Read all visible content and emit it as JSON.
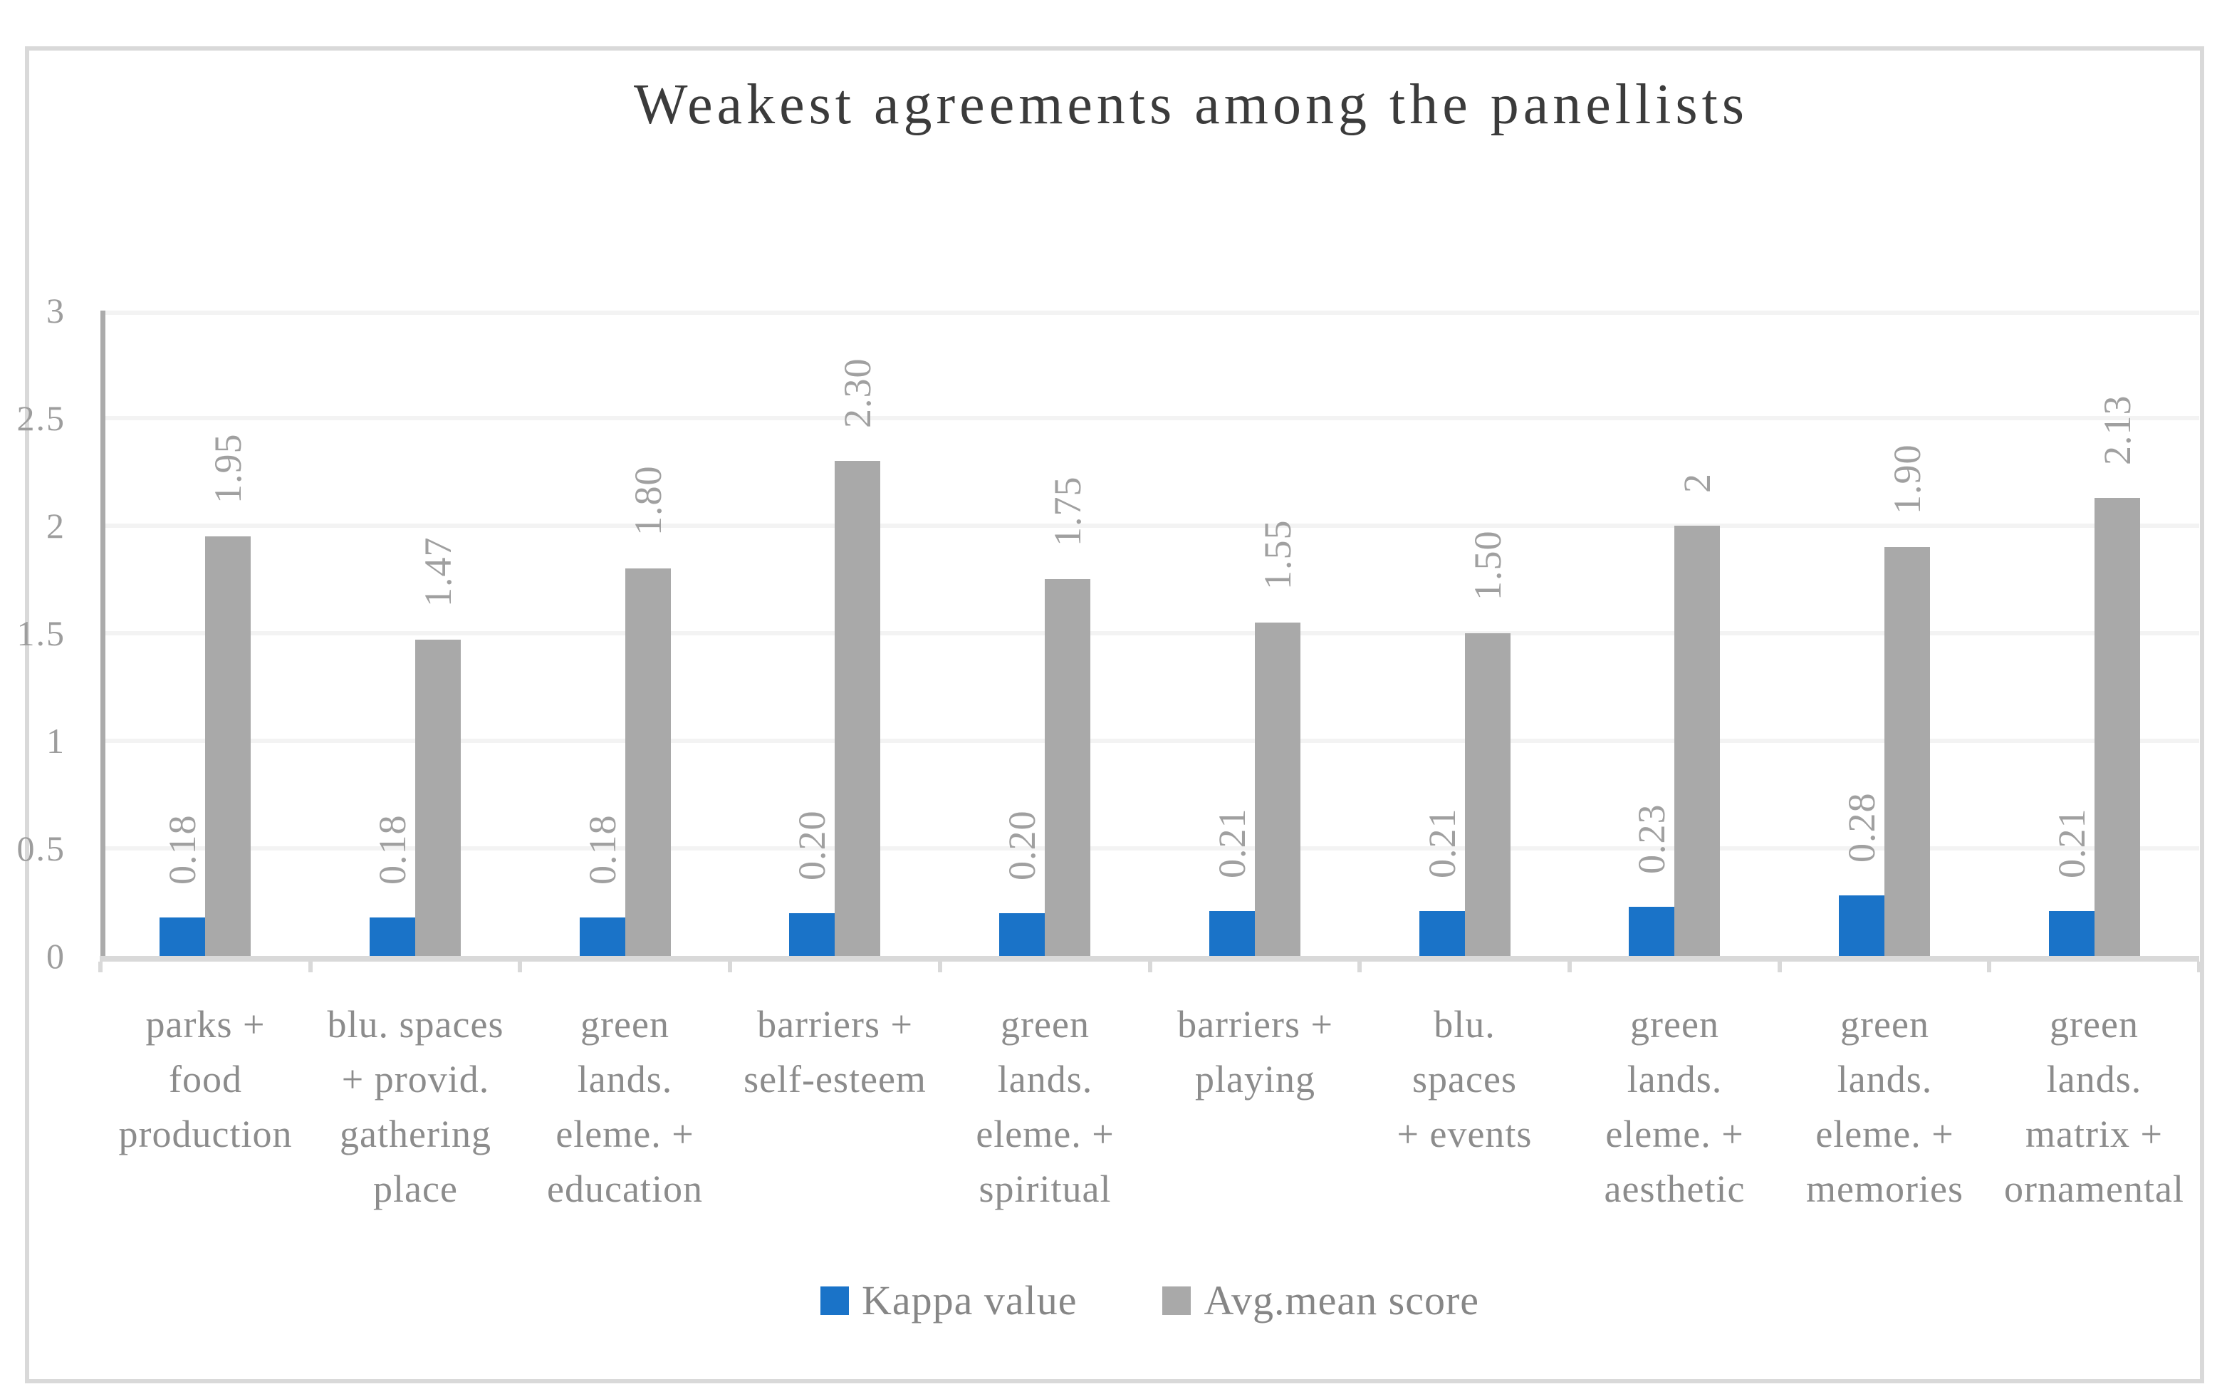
{
  "chart_data": {
    "type": "bar",
    "title": "Weakest agreements among the panellists",
    "categories": [
      "parks + food production",
      "blu. spaces + provid. gathering place",
      "green lands. eleme. + education",
      "barriers + self-esteem",
      "green lands. eleme. + spiritual",
      "barriers + playing",
      "blu. spaces + events",
      "green lands. eleme. + aesthetic",
      "green lands. eleme. + memories",
      "green lands. matrix + ornamental"
    ],
    "category_lines": [
      [
        "parks +",
        "food",
        "production"
      ],
      [
        "blu. spaces",
        "+ provid.",
        "gathering",
        "place"
      ],
      [
        "green",
        "lands.",
        "eleme. +",
        "education"
      ],
      [
        "barriers +",
        "self-esteem"
      ],
      [
        "green",
        "lands.",
        "eleme. +",
        "spiritual"
      ],
      [
        "barriers +",
        "playing"
      ],
      [
        "blu.",
        "spaces",
        "+ events"
      ],
      [
        "green",
        "lands.",
        "eleme. +",
        "aesthetic"
      ],
      [
        "green",
        "lands.",
        "eleme. +",
        "memories"
      ],
      [
        "green",
        "lands.",
        "matrix +",
        "ornamental"
      ]
    ],
    "series": [
      {
        "name": "Kappa value",
        "color": "#1A73C8",
        "values": [
          0.18,
          0.18,
          0.18,
          0.2,
          0.2,
          0.21,
          0.21,
          0.23,
          0.28,
          0.21
        ],
        "labels": [
          "0.18",
          "0.18",
          "0.18",
          "0.20",
          "0.20",
          "0.21",
          "0.21",
          "0.23",
          "0.28",
          "0.21"
        ]
      },
      {
        "name": "Avg.mean score",
        "color": "#A9A9A9",
        "values": [
          1.95,
          1.47,
          1.8,
          2.3,
          1.75,
          1.55,
          1.5,
          2,
          1.9,
          2.13
        ],
        "labels": [
          "1.95",
          "1.47",
          "1.80",
          "2.30",
          "1.75",
          "1.55",
          "1.50",
          "2",
          "1.90",
          "2.13"
        ]
      }
    ],
    "y_axis": {
      "min": 0,
      "max": 3,
      "step": 0.5,
      "tick_labels": [
        "0",
        "0.5",
        "1",
        "1.5",
        "2",
        "2.5",
        "3"
      ]
    },
    "legend": {
      "position": "bottom",
      "items": [
        "Kappa value",
        "Avg.mean score"
      ]
    },
    "grid": true,
    "colors": {
      "kappa_series": "#1A73C8",
      "avg_series": "#A9A9A9",
      "title_text": "#3B3B3B",
      "axis_number_text": "#9D9D9D",
      "data_label_text": "#A0A0A0",
      "category_text": "#8C8C8C",
      "legend_text": "#868686",
      "gridline": "#F3F3F3",
      "y_axis_line": "#ABABAB",
      "x_axis_line": "#D9D9D9",
      "chart_border": "#D9D9D9",
      "background": "#FFFFFF"
    }
  }
}
